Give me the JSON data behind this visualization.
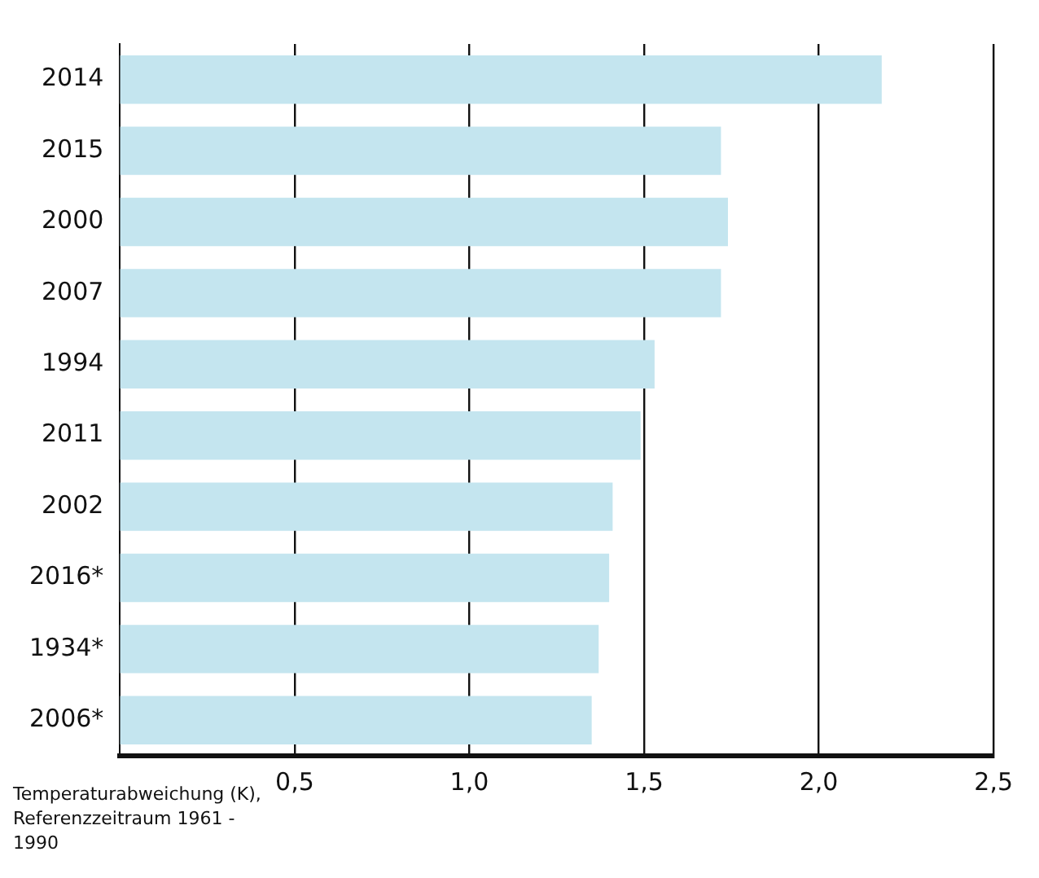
{
  "chart_data": {
    "type": "bar",
    "orientation": "horizontal",
    "categories": [
      "2014",
      "2015",
      "2000",
      "2007",
      "1994",
      "2011",
      "2002",
      "2016*",
      "1934*",
      "2006*"
    ],
    "values": [
      2.18,
      1.72,
      1.74,
      1.72,
      1.53,
      1.49,
      1.41,
      1.4,
      1.37,
      1.35
    ],
    "color": "#c4e5ef",
    "xlabel": "Temperaturabweichung (K), Referenzzeitraum 1961 - 1990",
    "xlim": [
      0,
      2.5
    ],
    "xticks": [
      {
        "value": 0.5,
        "label": "0,5"
      },
      {
        "value": 1.0,
        "label": "1,0"
      },
      {
        "value": 1.5,
        "label": "1,5"
      },
      {
        "value": 2.0,
        "label": "2,0"
      },
      {
        "value": 2.5,
        "label": "2,5"
      }
    ],
    "grid": "x",
    "legend": false
  }
}
